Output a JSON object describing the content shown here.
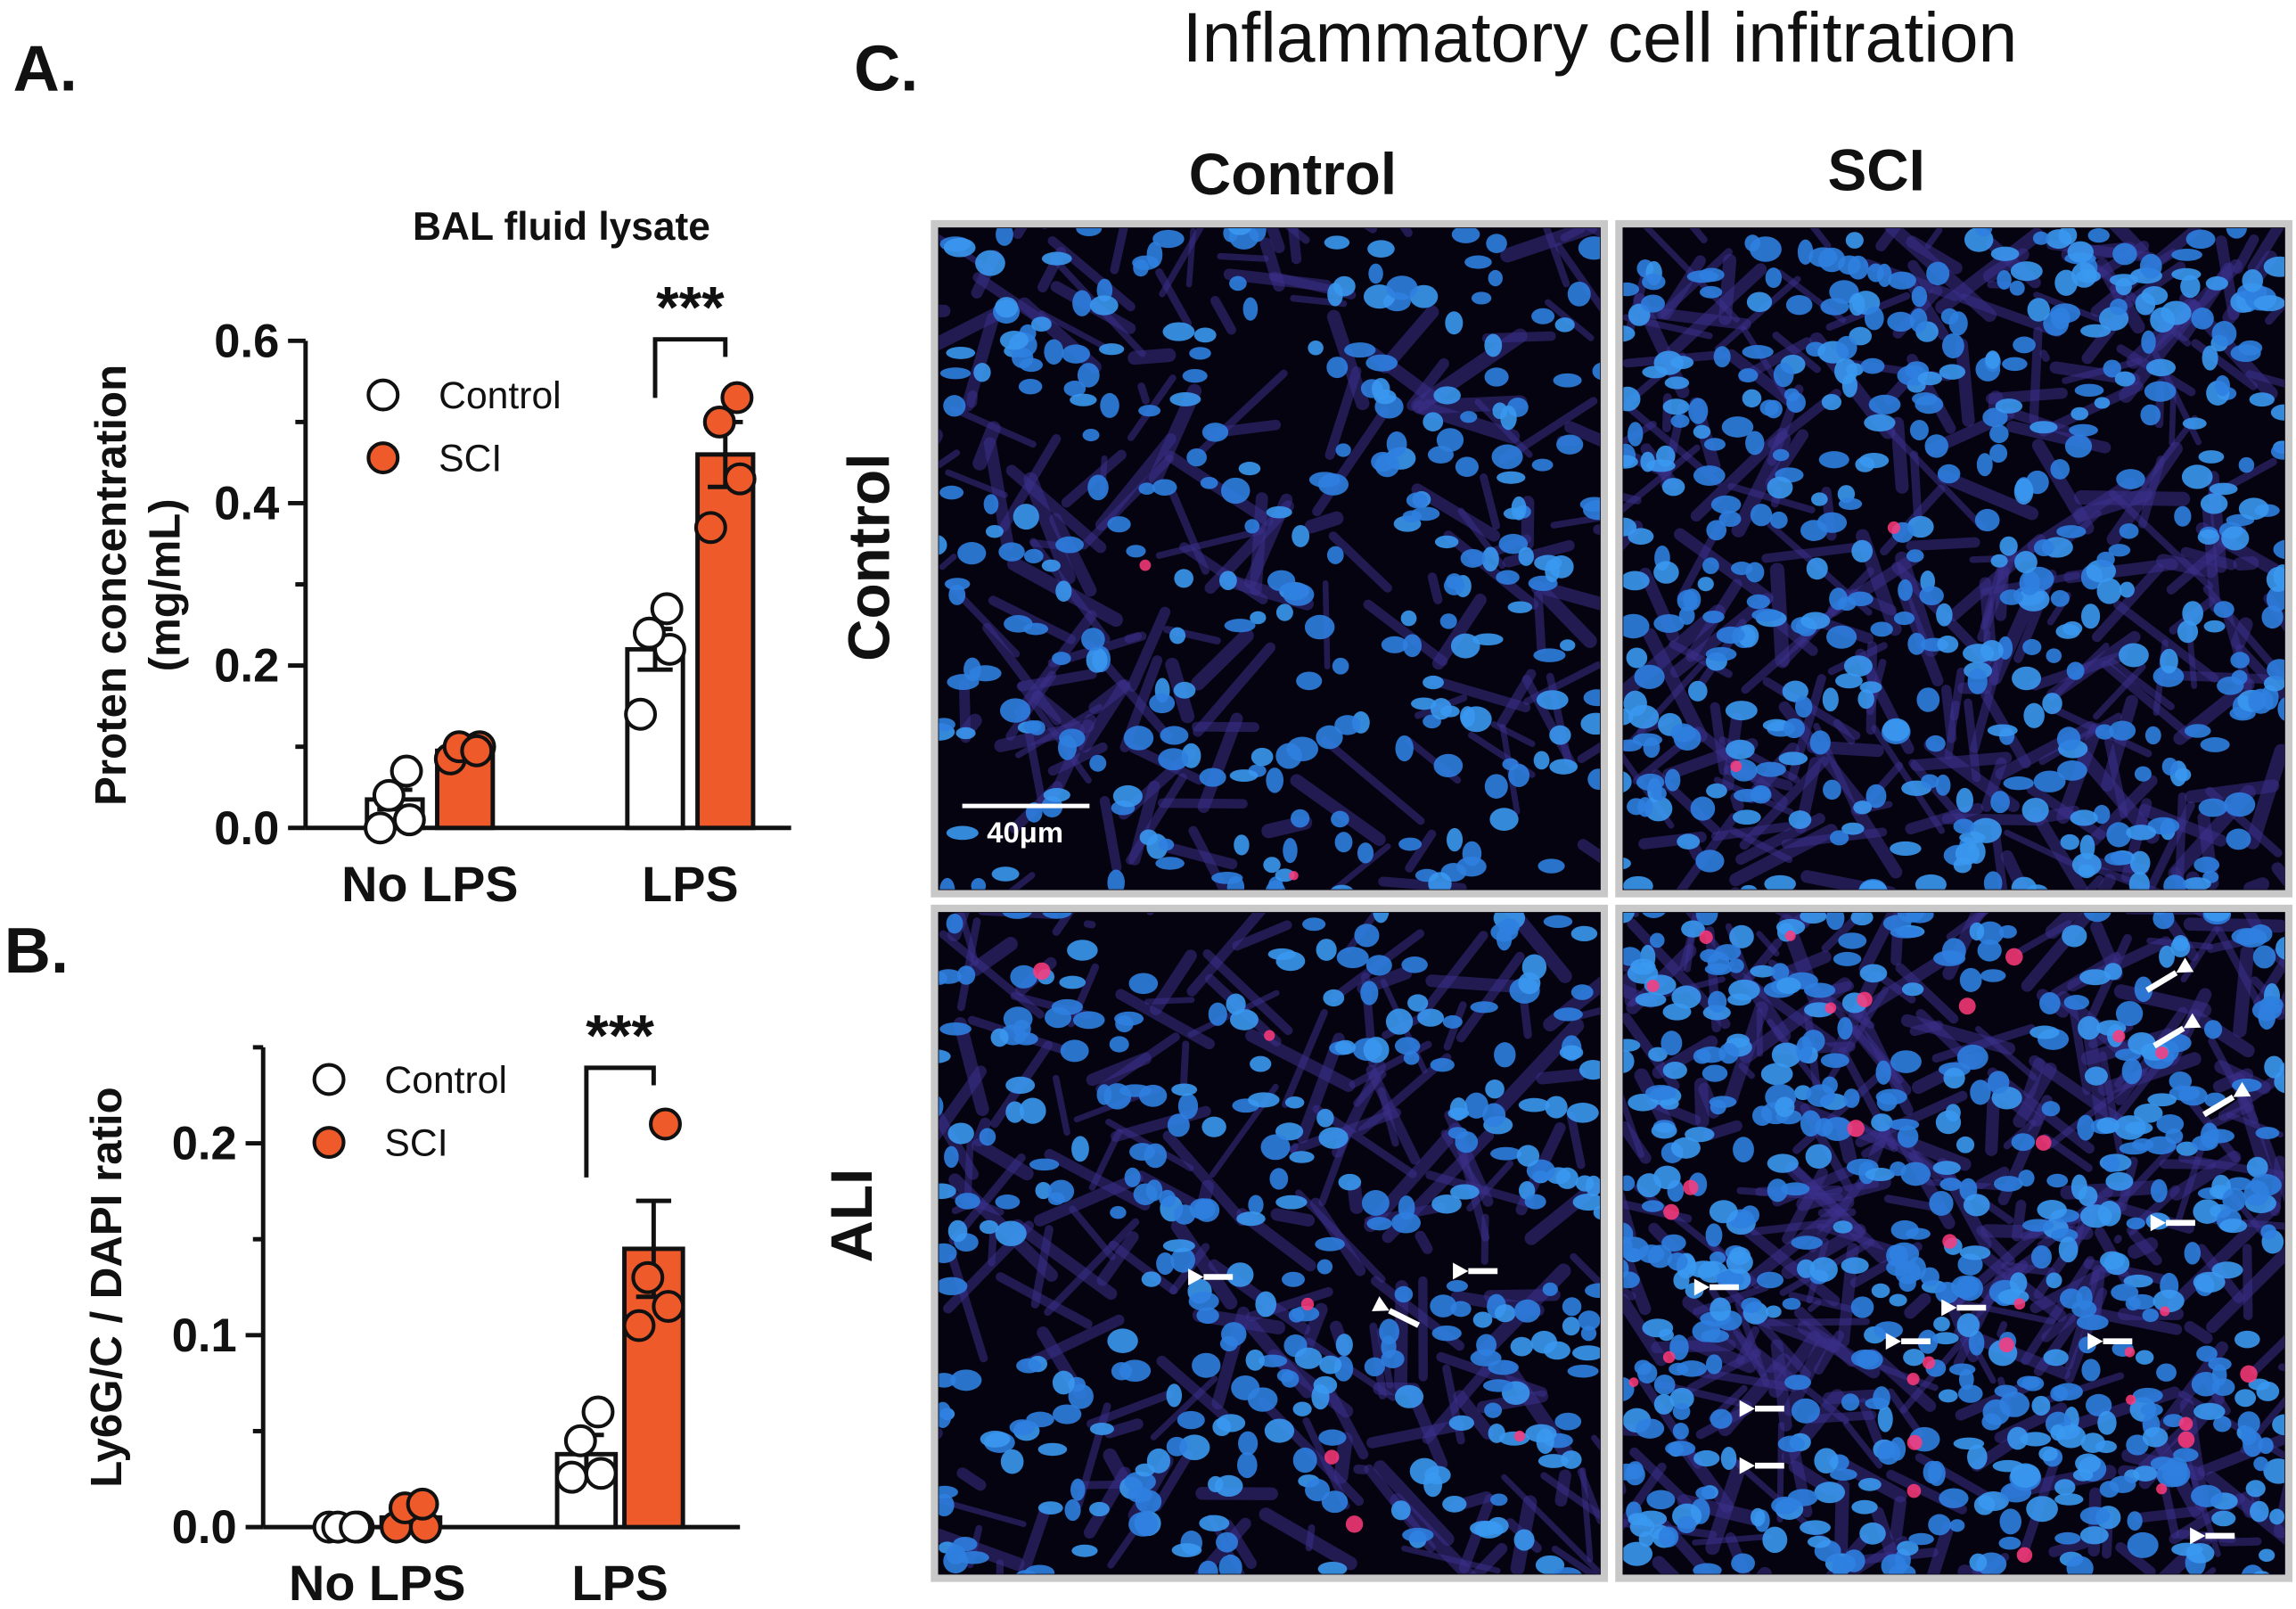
{
  "panel_a": {
    "label": "A.",
    "chart_data": {
      "type": "bar",
      "title": "BAL fluid lysate",
      "ylabel_line1": "Proten concentration",
      "ylabel_line2": "(mg/mL)",
      "categories": [
        "No LPS",
        "LPS"
      ],
      "ylim": [
        0,
        0.6
      ],
      "yticks": [
        "0.0",
        "0.2",
        "0.4",
        "0.6"
      ],
      "ytick_values": [
        0,
        0.2,
        0.4,
        0.6
      ],
      "series": [
        {
          "name": "Control",
          "color": "#ffffff",
          "values": [
            0.035,
            0.22
          ],
          "sem": [
            0.012,
            0.025
          ],
          "points": [
            [
              0.0,
              0.01,
              0.04,
              0.07
            ],
            [
              0.14,
              0.22,
              0.24,
              0.27
            ]
          ]
        },
        {
          "name": "SCI",
          "color": "#ee5a2a",
          "values": [
            0.095,
            0.46
          ],
          "sem": [
            0.005,
            0.04
          ],
          "points": [
            [
              0.085,
              0.1,
              0.1,
              0.095
            ],
            [
              0.37,
              0.43,
              0.5,
              0.53
            ]
          ]
        }
      ],
      "significance": "***",
      "legend": "top-left"
    }
  },
  "panel_b": {
    "label": "B.",
    "chart_data": {
      "type": "bar",
      "title": "",
      "ylabel_line1": "Ly6G/C / DAPI ratio",
      "categories": [
        "No LPS",
        "LPS"
      ],
      "ylim": [
        0,
        0.25
      ],
      "yticks": [
        "0.0",
        "0.1",
        "0.2"
      ],
      "ytick_values": [
        0,
        0.1,
        0.2
      ],
      "series": [
        {
          "name": "Control",
          "color": "#ffffff",
          "values": [
            0.0,
            0.038
          ],
          "sem": [
            0.0,
            0.01
          ],
          "points": [
            [
              0.0,
              0.0,
              0.0,
              0.0
            ],
            [
              0.026,
              0.028,
              0.045,
              0.06
            ]
          ]
        },
        {
          "name": "SCI",
          "color": "#ee5a2a",
          "values": [
            0.005,
            0.145
          ],
          "sem": [
            0.003,
            0.025
          ],
          "points": [
            [
              0.0,
              0.0,
              0.01,
              0.012
            ],
            [
              0.105,
              0.115,
              0.13,
              0.21
            ]
          ]
        }
      ],
      "significance": "***",
      "legend": "top-left"
    }
  },
  "panel_c": {
    "label": "C.",
    "title": "Inflammatory cell infitration",
    "col_headers": [
      "Control",
      "SCI"
    ],
    "row_headers": [
      "Control",
      "ALI"
    ],
    "scale_bar": "40μm"
  }
}
